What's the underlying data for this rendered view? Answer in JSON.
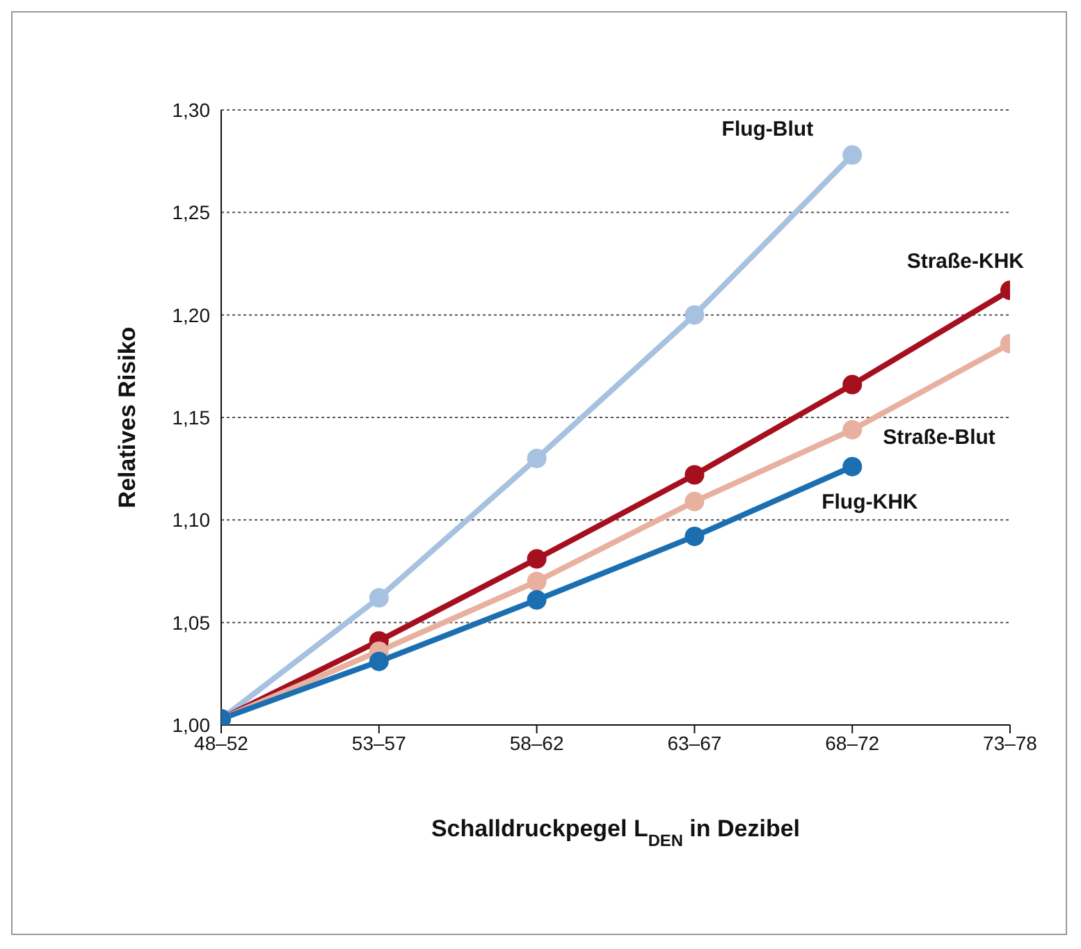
{
  "chart_data": {
    "type": "line",
    "ylabel": "Relatives Risiko",
    "xlabel": "Schalldruckpegel L$_{DEN}$ in Dezibel",
    "categories": [
      "48–52",
      "53–57",
      "58–62",
      "63–67",
      "68–72",
      "73–78"
    ],
    "series": [
      {
        "name": "Flug-Blut",
        "color": "#a7c1e1",
        "values": [
          1.003,
          1.062,
          1.13,
          1.2,
          1.278,
          null
        ]
      },
      {
        "name": "Straße-KHK",
        "color": "#a50f1e",
        "values": [
          1.003,
          1.041,
          1.081,
          1.122,
          1.166,
          1.212
        ]
      },
      {
        "name": "Straße-Blut",
        "color": "#e8b09e",
        "values": [
          1.003,
          1.036,
          1.07,
          1.109,
          1.144,
          1.186
        ]
      },
      {
        "name": "Flug-KHK",
        "color": "#1b6fb1",
        "values": [
          1.003,
          1.031,
          1.061,
          1.092,
          1.126,
          null
        ]
      }
    ],
    "ylim": [
      1.0,
      1.3
    ],
    "yticks": [
      {
        "value": 1.0,
        "label": "1,00"
      },
      {
        "value": 1.05,
        "label": "1,05"
      },
      {
        "value": 1.1,
        "label": "1,10"
      },
      {
        "value": 1.15,
        "label": "1,15"
      },
      {
        "value": 1.2,
        "label": "1,20"
      },
      {
        "value": 1.25,
        "label": "1,25"
      },
      {
        "value": 1.3,
        "label": "1,30"
      }
    ],
    "grid": "y",
    "legend": false,
    "marker": "circle",
    "line_style": "solid"
  }
}
